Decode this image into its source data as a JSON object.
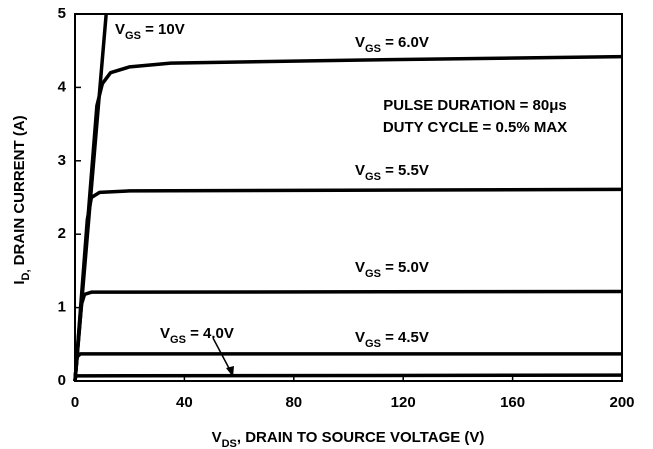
{
  "chart_data": {
    "type": "line",
    "xlabel": "VDS, DRAIN TO SOURCE VOLTAGE (V)",
    "ylabel": "ID, DRAIN CURRENT (A)",
    "annotations": [
      "PULSE DURATION = 80μs",
      "DUTY CYCLE = 0.5% MAX"
    ],
    "xlim": [
      0,
      200
    ],
    "xticks": [
      0,
      40,
      80,
      120,
      160,
      200
    ],
    "ylim": [
      0,
      5
    ],
    "yticks": [
      0,
      1,
      2,
      3,
      4,
      5
    ],
    "grid": false,
    "series": [
      {
        "name": "VGS = 10V",
        "color": "#000000",
        "x": [
          0,
          11.4
        ],
        "values": [
          0,
          5
        ]
      },
      {
        "name": "VGS = 6.0V",
        "color": "#000000",
        "x": [
          0,
          8,
          10,
          13,
          20,
          35,
          100,
          200
        ],
        "values": [
          0,
          3.75,
          4.05,
          4.2,
          4.28,
          4.33,
          4.37,
          4.42
        ]
      },
      {
        "name": "VGS = 5.5V",
        "color": "#000000",
        "x": [
          0,
          4.5,
          6,
          9,
          20,
          200
        ],
        "values": [
          0,
          2.2,
          2.5,
          2.57,
          2.59,
          2.61
        ]
      },
      {
        "name": "VGS = 5.0V",
        "color": "#000000",
        "x": [
          0,
          2.4,
          3.5,
          6,
          200
        ],
        "values": [
          0,
          1.05,
          1.18,
          1.21,
          1.22
        ]
      },
      {
        "name": "VGS = 4.5V",
        "color": "#000000",
        "x": [
          0,
          0.8,
          2,
          200
        ],
        "values": [
          0,
          0.33,
          0.37,
          0.37
        ]
      },
      {
        "name": "VGS = 4.0V",
        "color": "#000000",
        "x": [
          0,
          0.3,
          200
        ],
        "values": [
          0,
          0.07,
          0.08
        ]
      }
    ]
  }
}
